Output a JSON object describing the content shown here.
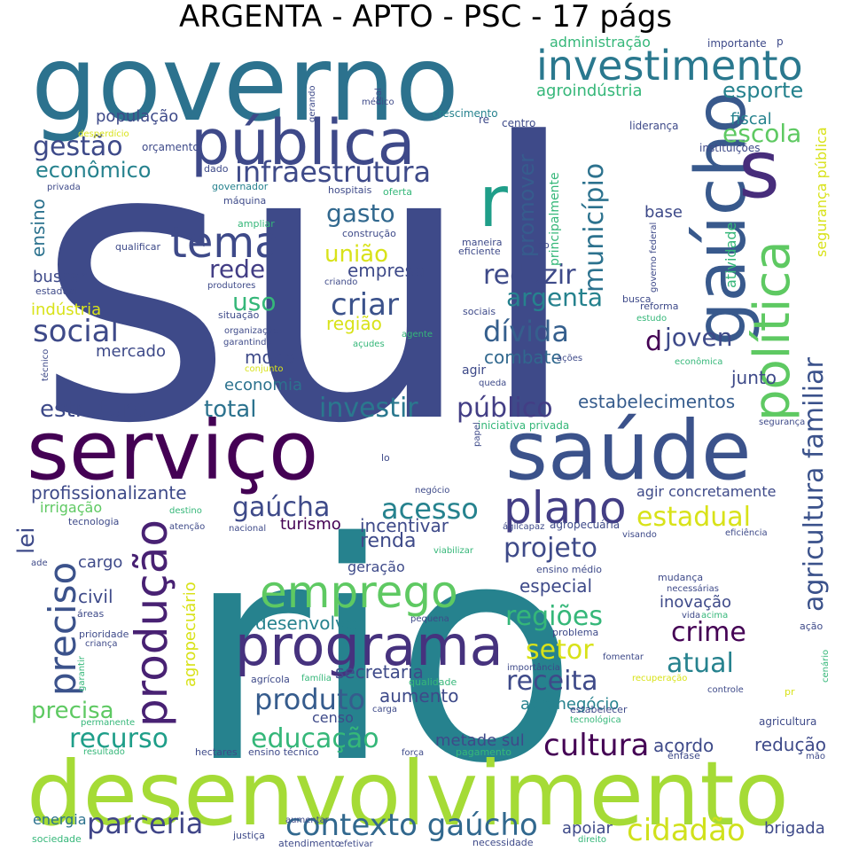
{
  "title": "ARGENTA - APTO - PSC - 17 págs",
  "words": [
    {
      "text": "sul",
      "color": "#3e4a89"
    },
    {
      "text": "rio",
      "color": "#26828e"
    },
    {
      "text": "governo",
      "color": "#2c728e"
    },
    {
      "text": "desenvolvimento",
      "color": "#a5db36"
    },
    {
      "text": "serviço",
      "color": "#440154"
    },
    {
      "text": "saúde",
      "color": "#3b528b"
    },
    {
      "text": "pública",
      "color": "#3e4989"
    },
    {
      "text": "gaúcho",
      "color": "#38598c"
    },
    {
      "text": "programa",
      "color": "#46327e"
    },
    {
      "text": "emprego",
      "color": "#5ec962"
    },
    {
      "text": "investimento",
      "color": "#2a788e"
    },
    {
      "text": "política",
      "color": "#5ec962"
    },
    {
      "text": "s",
      "color": "#472d7b"
    },
    {
      "text": "r",
      "color": "#1f9e89"
    },
    {
      "text": "tema",
      "color": "#3e4a89"
    },
    {
      "text": "plano",
      "color": "#433e85"
    },
    {
      "text": "infraestrutura",
      "color": "#3e4a89"
    },
    {
      "text": "produção",
      "color": "#482173"
    },
    {
      "text": "preciso",
      "color": "#3b528b"
    },
    {
      "text": "agricultura familiar",
      "color": "#3b528b"
    },
    {
      "text": "contexto gaúcho",
      "color": "#31688e"
    },
    {
      "text": "cidadão",
      "color": "#d0e11c"
    },
    {
      "text": "parceria",
      "color": "#404688"
    },
    {
      "text": "educação",
      "color": "#35b779"
    },
    {
      "text": "cultura",
      "color": "#440154"
    },
    {
      "text": "recurso",
      "color": "#1f9e89"
    },
    {
      "text": "produto",
      "color": "#365c8d"
    },
    {
      "text": "município",
      "color": "#2c728e"
    },
    {
      "text": "estrutura",
      "color": "#3e4a89"
    },
    {
      "text": "total",
      "color": "#2c728e"
    },
    {
      "text": "investir",
      "color": "#2a788e"
    },
    {
      "text": "público",
      "color": "#433e85"
    },
    {
      "text": "social",
      "color": "#3e4a89"
    },
    {
      "text": "dívida",
      "color": "#355f8d"
    },
    {
      "text": "criar",
      "color": "#3b528b"
    },
    {
      "text": "reduzir",
      "color": "#3e4a89"
    },
    {
      "text": "argenta",
      "color": "#26828e"
    },
    {
      "text": "acesso",
      "color": "#26828e"
    },
    {
      "text": "gaúcha",
      "color": "#3e4a89"
    },
    {
      "text": "estadual",
      "color": "#d8e219"
    },
    {
      "text": "projeto",
      "color": "#3e4a89"
    },
    {
      "text": "crime",
      "color": "#440154"
    },
    {
      "text": "regiões",
      "color": "#35b779"
    },
    {
      "text": "setor",
      "color": "#d8e219"
    },
    {
      "text": "atual",
      "color": "#26828e"
    },
    {
      "text": "receita",
      "color": "#3e4a89"
    },
    {
      "text": "precisa",
      "color": "#5ec962"
    },
    {
      "text": "gestão",
      "color": "#3e4a89"
    },
    {
      "text": "econômico",
      "color": "#26828e"
    },
    {
      "text": "promover",
      "color": "#365c8d"
    },
    {
      "text": "escola",
      "color": "#5ec962"
    },
    {
      "text": "esporte",
      "color": "#26828e"
    },
    {
      "text": "agroindústria",
      "color": "#35b779"
    },
    {
      "text": "gasto",
      "color": "#31688e"
    },
    {
      "text": "união",
      "color": "#d8e219"
    },
    {
      "text": "rede",
      "color": "#433e85"
    },
    {
      "text": "uso",
      "color": "#35b779"
    },
    {
      "text": "joven",
      "color": "#3e4a89"
    },
    {
      "text": "d",
      "color": "#440154"
    },
    {
      "text": "lei",
      "color": "#3e4a89"
    },
    {
      "text": "agropecuário",
      "color": "#d8e219"
    },
    {
      "text": "profissionalizante",
      "color": "#3e4a89"
    },
    {
      "text": "estabelecimentos",
      "color": "#365c8d"
    },
    {
      "text": "ensino",
      "color": "#2c728e"
    },
    {
      "text": "população",
      "color": "#3e4a89"
    },
    {
      "text": "empresa",
      "color": "#3e4a89"
    },
    {
      "text": "região",
      "color": "#d8e219"
    },
    {
      "text": "combate",
      "color": "#31688e"
    },
    {
      "text": "modo",
      "color": "#3e4a89"
    },
    {
      "text": "indústria",
      "color": "#d8e219"
    },
    {
      "text": "mercado",
      "color": "#3e4a89"
    },
    {
      "text": "buscar",
      "color": "#3e4a89"
    },
    {
      "text": "economia",
      "color": "#2c728e"
    },
    {
      "text": "junto",
      "color": "#3e4a89"
    },
    {
      "text": "renda",
      "color": "#3e4a89"
    },
    {
      "text": "turismo",
      "color": "#440154"
    },
    {
      "text": "incentivar",
      "color": "#3e4a89"
    },
    {
      "text": "atividade",
      "color": "#35b779"
    },
    {
      "text": "base",
      "color": "#3e4a89"
    },
    {
      "text": "fiscal",
      "color": "#26828e"
    },
    {
      "text": "segurança pública",
      "color": "#d8e219"
    },
    {
      "text": "cargo",
      "color": "#3e4a89"
    },
    {
      "text": "civil",
      "color": "#3e4a89"
    },
    {
      "text": "especial",
      "color": "#3e4a89"
    },
    {
      "text": "desenvolver",
      "color": "#26828e"
    },
    {
      "text": "secretaria",
      "color": "#3e4a89"
    },
    {
      "text": "aumento",
      "color": "#3e4a89"
    },
    {
      "text": "agronegócio",
      "color": "#26828e"
    },
    {
      "text": "inovação",
      "color": "#3e4a89"
    },
    {
      "text": "agir concretamente",
      "color": "#3e4a89"
    },
    {
      "text": "acordo",
      "color": "#3e4a89"
    },
    {
      "text": "redução",
      "color": "#3e4a89"
    },
    {
      "text": "brigada",
      "color": "#3e4a89"
    },
    {
      "text": "apoiar",
      "color": "#3e4a89"
    },
    {
      "text": "metade sul",
      "color": "#3e4a89"
    },
    {
      "text": "energia",
      "color": "#2c728e"
    },
    {
      "text": "irrigação",
      "color": "#5ec962"
    },
    {
      "text": "censo",
      "color": "#3e4a89"
    },
    {
      "text": "geração",
      "color": "#3e4a89"
    },
    {
      "text": "agir",
      "color": "#3e4a89"
    },
    {
      "text": "administração",
      "color": "#35b779"
    },
    {
      "text": "importante",
      "color": "#3e4a89"
    },
    {
      "text": "p",
      "color": "#3e4a89"
    },
    {
      "text": "crescimento",
      "color": "#26828e"
    },
    {
      "text": "centro",
      "color": "#3e4a89"
    },
    {
      "text": "re",
      "color": "#3e4a89"
    },
    {
      "text": "liderança",
      "color": "#3e4a89"
    },
    {
      "text": "instituições",
      "color": "#3e4a89"
    },
    {
      "text": "orçamento",
      "color": "#3e4a89"
    },
    {
      "text": "desperdício",
      "color": "#d8e219"
    },
    {
      "text": "dado",
      "color": "#3e4a89"
    },
    {
      "text": "governador",
      "color": "#26828e"
    },
    {
      "text": "máquina",
      "color": "#3e4a89"
    },
    {
      "text": "ampliar",
      "color": "#35b779"
    },
    {
      "text": "hospitais",
      "color": "#3e4a89"
    },
    {
      "text": "oferta",
      "color": "#35b779"
    },
    {
      "text": "privada",
      "color": "#3e4a89"
    },
    {
      "text": "qualificar",
      "color": "#3e4a89"
    },
    {
      "text": "construção",
      "color": "#3e4a89"
    },
    {
      "text": "maneira",
      "color": "#3e4a89"
    },
    {
      "text": "eficiente",
      "color": "#3e4a89"
    },
    {
      "text": "co",
      "color": "#3e4a89"
    },
    {
      "text": "criando",
      "color": "#3e4a89"
    },
    {
      "text": "produtores",
      "color": "#3e4a89"
    },
    {
      "text": "estaduai",
      "color": "#3e4a89"
    },
    {
      "text": "situação",
      "color": "#3e4a89"
    },
    {
      "text": "organização",
      "color": "#3e4a89"
    },
    {
      "text": "garantindo",
      "color": "#3e4a89"
    },
    {
      "text": "sociais",
      "color": "#3e4a89"
    },
    {
      "text": "busca",
      "color": "#3e4a89"
    },
    {
      "text": "reforma",
      "color": "#3e4a89"
    },
    {
      "text": "estudo",
      "color": "#35b779"
    },
    {
      "text": "governo federal",
      "color": "#3e4a89"
    },
    {
      "text": "principalmente",
      "color": "#35b779"
    },
    {
      "text": "agente",
      "color": "#35b779"
    },
    {
      "text": "açudes",
      "color": "#35b779"
    },
    {
      "text": "conjunto",
      "color": "#d8e219"
    },
    {
      "text": "queda",
      "color": "#3e4a89"
    },
    {
      "text": "ações",
      "color": "#3e4a89"
    },
    {
      "text": "econômica",
      "color": "#35b779"
    },
    {
      "text": "segurança",
      "color": "#3e4a89"
    },
    {
      "text": "técnico",
      "color": "#3e4a89"
    },
    {
      "text": "iniciativa privada",
      "color": "#35b779"
    },
    {
      "text": "papel",
      "color": "#3e4a89"
    },
    {
      "text": "lo",
      "color": "#3e4a89"
    },
    {
      "text": "negócio",
      "color": "#3e4a89"
    },
    {
      "text": "destino",
      "color": "#35b779"
    },
    {
      "text": "atenção",
      "color": "#3e4a89"
    },
    {
      "text": "nacional",
      "color": "#3e4a89"
    },
    {
      "text": "tecnologia",
      "color": "#3e4a89"
    },
    {
      "text": "capaz",
      "color": "#3e4a89"
    },
    {
      "text": "ágil",
      "color": "#3e4a89"
    },
    {
      "text": "agropecuária",
      "color": "#3e4a89"
    },
    {
      "text": "visando",
      "color": "#3e4a89"
    },
    {
      "text": "eficiência",
      "color": "#3e4a89"
    },
    {
      "text": "viabilizar",
      "color": "#35b779"
    },
    {
      "text": "ensino médio",
      "color": "#3e4a89"
    },
    {
      "text": "mudança",
      "color": "#3e4a89"
    },
    {
      "text": "necessárias",
      "color": "#3e4a89"
    },
    {
      "text": "vida",
      "color": "#3e4a89"
    },
    {
      "text": "acima",
      "color": "#35b779"
    },
    {
      "text": "ade",
      "color": "#3e4a89"
    },
    {
      "text": "áreas",
      "color": "#3e4a89"
    },
    {
      "text": "prioridade",
      "color": "#3e4a89"
    },
    {
      "text": "criança",
      "color": "#3e4a89"
    },
    {
      "text": "pequena",
      "color": "#3e4a89"
    },
    {
      "text": "problema",
      "color": "#3e4a89"
    },
    {
      "text": "ação",
      "color": "#3e4a89"
    },
    {
      "text": "garantir",
      "color": "#35b779"
    },
    {
      "text": "importância",
      "color": "#3e4a89"
    },
    {
      "text": "fomentar",
      "color": "#3e4a89"
    },
    {
      "text": "agrícola",
      "color": "#3e4a89"
    },
    {
      "text": "família",
      "color": "#35b779"
    },
    {
      "text": "qualidade",
      "color": "#35b779"
    },
    {
      "text": "recuperação",
      "color": "#d8e219"
    },
    {
      "text": "controle",
      "color": "#3e4a89"
    },
    {
      "text": "pr",
      "color": "#d8e219"
    },
    {
      "text": "cenário",
      "color": "#35b779"
    },
    {
      "text": "permanente",
      "color": "#35b779"
    },
    {
      "text": "carga",
      "color": "#3e4a89"
    },
    {
      "text": "estabelecer",
      "color": "#3e4a89"
    },
    {
      "text": "tecnológica",
      "color": "#35b779"
    },
    {
      "text": "agricultura",
      "color": "#3e4a89"
    },
    {
      "text": "resultado",
      "color": "#35b779"
    },
    {
      "text": "hectares",
      "color": "#3e4a89"
    },
    {
      "text": "ensino técnico",
      "color": "#3e4a89"
    },
    {
      "text": "força",
      "color": "#3e4a89"
    },
    {
      "text": "pagamento",
      "color": "#35b779"
    },
    {
      "text": "ênfase",
      "color": "#3e4a89"
    },
    {
      "text": "mão",
      "color": "#3e4a89"
    },
    {
      "text": "aumentar",
      "color": "#3e4a89"
    },
    {
      "text": "justiça",
      "color": "#3e4a89"
    },
    {
      "text": "direito",
      "color": "#35b779"
    },
    {
      "text": "sociedade",
      "color": "#35b779"
    },
    {
      "text": "atendimento",
      "color": "#3e4a89"
    },
    {
      "text": "efetivar",
      "color": "#3e4a89"
    },
    {
      "text": "necessidade",
      "color": "#3e4a89"
    },
    {
      "text": "gerando",
      "color": "#3e4a89"
    },
    {
      "text": "real",
      "color": "#3e4a89"
    },
    {
      "text": "médico",
      "color": "#3e4a89"
    }
  ]
}
